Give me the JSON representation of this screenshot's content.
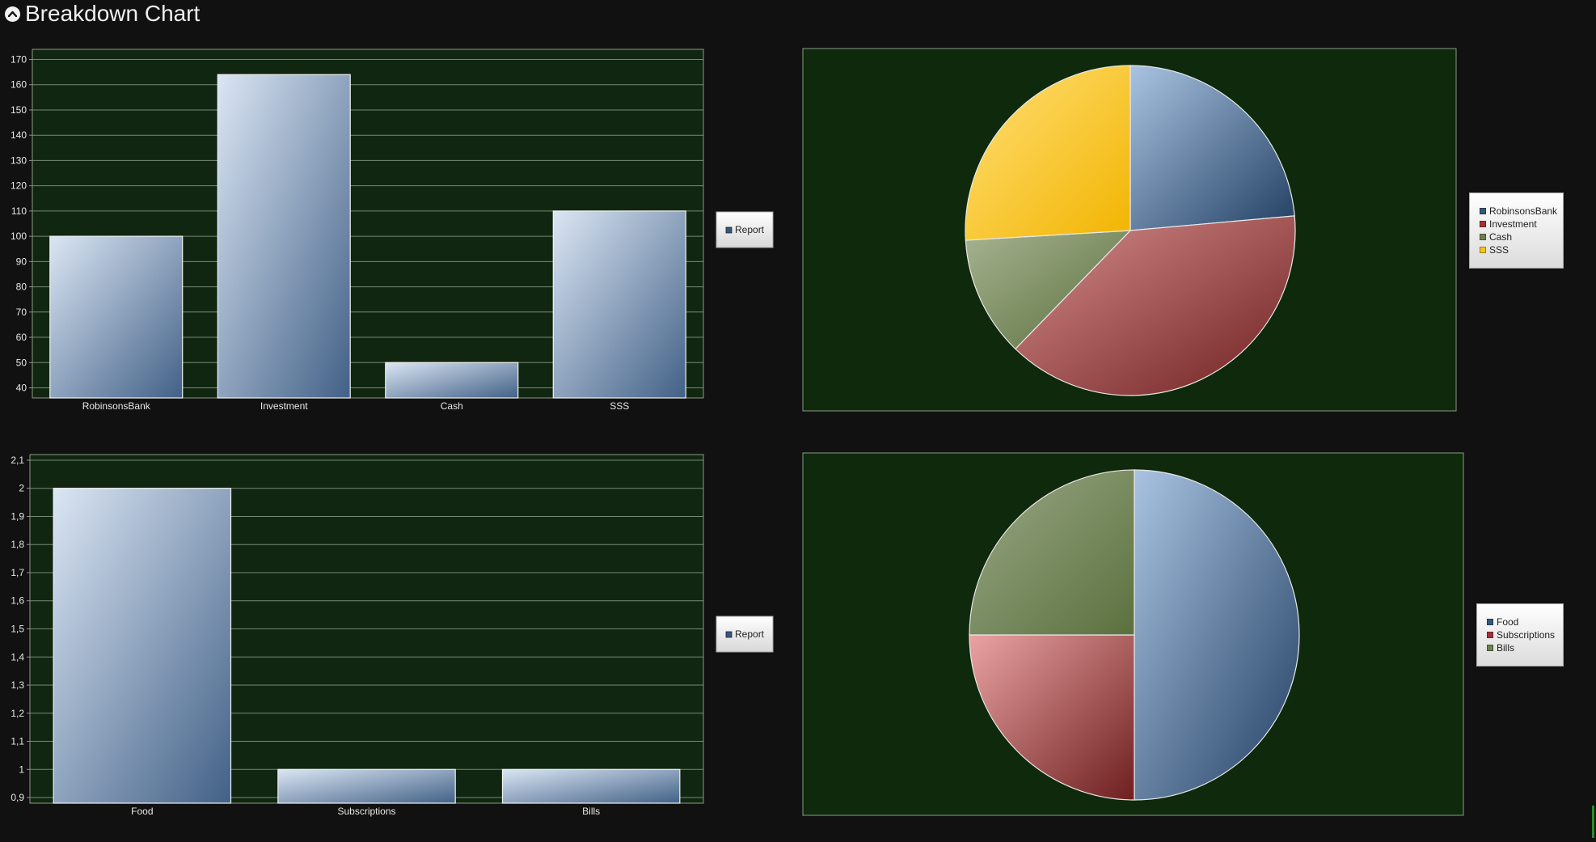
{
  "header": {
    "title": "Breakdown Chart",
    "toggle_icon": "chevron-up-icon"
  },
  "theme": {
    "page_bg": "#111111",
    "plot_bg": "#0e290b",
    "plot_bg_bar": "#102610",
    "grid_color": "#8a9a86",
    "axis_text": "#e8e8e8",
    "bar_gradient": [
      "#dbe6f4",
      "#426187"
    ],
    "report_swatch": "#35587c"
  },
  "chart_data": [
    {
      "id": "assets-bar",
      "type": "bar",
      "categories": [
        "RobinsonsBank",
        "Investment",
        "Cash",
        "SSS"
      ],
      "values": [
        100,
        164,
        50,
        110
      ],
      "ylim": [
        36,
        174
      ],
      "yticks": [
        "40",
        "50",
        "60",
        "70",
        "80",
        "90",
        "100",
        "110",
        "120",
        "130",
        "140",
        "150",
        "160",
        "170"
      ],
      "yticks_v": [
        40,
        50,
        60,
        70,
        80,
        90,
        100,
        110,
        120,
        130,
        140,
        150,
        160,
        170
      ],
      "legend": [
        "Report"
      ],
      "grid": true
    },
    {
      "id": "assets-pie",
      "type": "pie",
      "labels": [
        "RobinsonsBank",
        "Investment",
        "Cash",
        "SSS"
      ],
      "values": [
        100,
        164,
        50,
        110
      ],
      "colors": [
        [
          "#aac3e2",
          "#213f62"
        ],
        [
          "#d88f8f",
          "#6e1f1f"
        ],
        [
          "#a6b390",
          "#5a6e3c"
        ],
        [
          "#ffe078",
          "#f2b400"
        ]
      ],
      "swatches": [
        "#35587c",
        "#a33434",
        "#6f7f52",
        "#f6c31a"
      ],
      "legend_placement": "right"
    },
    {
      "id": "expenses-bar",
      "type": "bar",
      "categories": [
        "Food",
        "Subscriptions",
        "Bills"
      ],
      "values": [
        2,
        1,
        1
      ],
      "ylim": [
        0.88,
        2.12
      ],
      "yticks": [
        "0,9",
        "1",
        "1,1",
        "1,2",
        "1,3",
        "1,4",
        "1,5",
        "1,6",
        "1,7",
        "1,8",
        "1,9",
        "2",
        "2,1"
      ],
      "yticks_v": [
        0.9,
        1,
        1.1,
        1.2,
        1.3,
        1.4,
        1.5,
        1.6,
        1.7,
        1.8,
        1.9,
        2,
        2.1
      ],
      "legend": [
        "Report"
      ],
      "grid": true
    },
    {
      "id": "expenses-pie",
      "type": "pie",
      "labels": [
        "Food",
        "Subscriptions",
        "Bills"
      ],
      "values": [
        2,
        1,
        1
      ],
      "colors": [
        [
          "#aac3e2",
          "#213f62"
        ],
        [
          "#eaa3a3",
          "#6e1f1f"
        ],
        [
          "#9aa986",
          "#5b703e"
        ]
      ],
      "swatches": [
        "#35587c",
        "#a33434",
        "#6f7f52"
      ],
      "legend_placement": "right"
    }
  ]
}
